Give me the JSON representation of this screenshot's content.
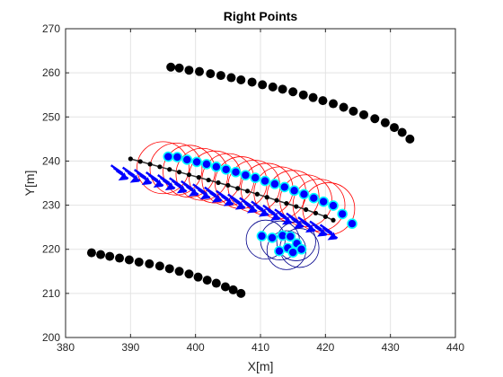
{
  "chart_data": {
    "type": "scatter",
    "title": "Right Points",
    "xlabel": "X[m]",
    "ylabel": "Y[m]",
    "xlim": [
      380,
      440
    ],
    "ylim": [
      200,
      270
    ],
    "xticks": [
      380,
      390,
      400,
      410,
      420,
      430,
      440
    ],
    "yticks": [
      200,
      210,
      220,
      230,
      240,
      250,
      260,
      270
    ],
    "grid": true,
    "colors": {
      "black_points": "#000000",
      "blue_markers": "#0000ff",
      "cyan_edge": "#00ffff",
      "red_circles": "#ff0000",
      "navy_circles": "#00008b",
      "dark_line": "#333333"
    },
    "series": [
      {
        "marker": "filled-circle",
        "color": "#000000",
        "points": [
          [
            396.2,
            261.3
          ],
          [
            397.5,
            261.1
          ],
          [
            399.0,
            260.6
          ],
          [
            400.6,
            260.3
          ],
          [
            402.3,
            259.8
          ],
          [
            403.9,
            259.4
          ],
          [
            405.5,
            258.9
          ],
          [
            407.0,
            258.4
          ],
          [
            408.7,
            257.9
          ],
          [
            410.3,
            257.3
          ],
          [
            411.9,
            256.8
          ],
          [
            413.4,
            256.3
          ],
          [
            415.0,
            255.7
          ],
          [
            416.6,
            255.0
          ],
          [
            418.1,
            254.4
          ],
          [
            419.6,
            253.7
          ],
          [
            421.2,
            253.0
          ],
          [
            422.8,
            252.2
          ],
          [
            424.3,
            251.3
          ],
          [
            425.9,
            250.5
          ],
          [
            427.6,
            249.6
          ],
          [
            429.2,
            248.7
          ],
          [
            430.6,
            247.6
          ],
          [
            431.8,
            246.5
          ],
          [
            433.0,
            245.0
          ]
        ]
      },
      {
        "marker": "filled-circle",
        "color": "#000000",
        "points": [
          [
            384.0,
            219.2
          ],
          [
            385.4,
            218.8
          ],
          [
            386.8,
            218.4
          ],
          [
            388.3,
            218.0
          ],
          [
            389.8,
            217.6
          ],
          [
            391.3,
            217.1
          ],
          [
            392.9,
            216.7
          ],
          [
            394.5,
            216.2
          ],
          [
            396.0,
            215.6
          ],
          [
            397.5,
            215.0
          ],
          [
            399.0,
            214.4
          ],
          [
            400.4,
            213.7
          ],
          [
            401.8,
            213.0
          ],
          [
            403.2,
            212.3
          ],
          [
            404.6,
            211.5
          ],
          [
            405.8,
            210.8
          ],
          [
            407.0,
            210.0
          ]
        ]
      },
      {
        "marker": "filled-circle-small",
        "color": "#000000",
        "points": [
          [
            390.0,
            240.5
          ],
          [
            391.5,
            239.9
          ],
          [
            393.0,
            239.3
          ],
          [
            394.5,
            238.7
          ],
          [
            396.0,
            238.1
          ],
          [
            397.5,
            237.5
          ],
          [
            399.0,
            236.9
          ],
          [
            400.5,
            236.3
          ],
          [
            402.0,
            235.7
          ],
          [
            403.5,
            235.1
          ],
          [
            405.0,
            234.5
          ],
          [
            406.5,
            233.8
          ],
          [
            408.0,
            233.2
          ],
          [
            409.5,
            232.5
          ],
          [
            411.0,
            231.8
          ],
          [
            412.5,
            231.1
          ],
          [
            414.0,
            230.4
          ],
          [
            415.5,
            229.7
          ],
          [
            417.0,
            229.0
          ],
          [
            418.5,
            228.2
          ],
          [
            420.0,
            227.4
          ],
          [
            421.2,
            226.6
          ]
        ]
      },
      {
        "marker": "cyan-edged-circle",
        "color": "#0000ff",
        "points": [
          [
            395.8,
            241.0
          ],
          [
            397.2,
            240.9
          ],
          [
            398.7,
            240.3
          ],
          [
            400.2,
            239.8
          ],
          [
            401.7,
            239.3
          ],
          [
            403.2,
            238.7
          ],
          [
            404.7,
            238.1
          ],
          [
            406.2,
            237.5
          ],
          [
            407.7,
            236.8
          ],
          [
            409.2,
            236.2
          ],
          [
            410.7,
            235.5
          ],
          [
            412.2,
            234.8
          ],
          [
            413.7,
            234.1
          ],
          [
            415.2,
            233.3
          ],
          [
            416.7,
            232.5
          ],
          [
            418.2,
            231.6
          ],
          [
            419.7,
            230.8
          ],
          [
            421.2,
            229.9
          ],
          [
            422.6,
            228.0
          ],
          [
            424.1,
            225.8
          ],
          [
            413.4,
            223.1
          ],
          [
            414.6,
            222.9
          ],
          [
            411.8,
            222.6
          ],
          [
            410.2,
            223.0
          ],
          [
            415.6,
            221.3
          ],
          [
            414.2,
            220.3
          ],
          [
            412.9,
            219.6
          ],
          [
            415.0,
            219.3
          ],
          [
            416.3,
            220.0
          ]
        ]
      },
      {
        "marker": "blue-arrow",
        "color": "#0000ff",
        "points": [
          [
            387.0,
            237.0
          ],
          [
            388.8,
            236.5
          ],
          [
            390.6,
            236.0
          ],
          [
            392.4,
            235.4
          ],
          [
            394.2,
            234.8
          ],
          [
            396.0,
            234.1
          ],
          [
            397.8,
            233.4
          ],
          [
            399.6,
            232.7
          ],
          [
            401.4,
            232.0
          ],
          [
            403.2,
            231.2
          ],
          [
            405.0,
            230.4
          ],
          [
            406.8,
            229.6
          ],
          [
            408.6,
            228.8
          ],
          [
            410.4,
            227.9
          ],
          [
            412.2,
            227.0
          ],
          [
            414.0,
            226.1
          ],
          [
            415.8,
            225.2
          ],
          [
            417.6,
            224.3
          ],
          [
            419.2,
            223.5
          ]
        ]
      },
      {
        "marker": "open-circle-r4",
        "color": "#ff0000",
        "points": [
          [
            395.0,
            238.5
          ],
          [
            397.0,
            238.2
          ],
          [
            399.0,
            237.7
          ],
          [
            401.0,
            237.0
          ],
          [
            403.0,
            236.4
          ],
          [
            405.0,
            235.8
          ],
          [
            407.0,
            235.1
          ],
          [
            409.0,
            234.3
          ],
          [
            411.0,
            233.6
          ],
          [
            413.0,
            232.8
          ],
          [
            415.0,
            232.0
          ],
          [
            417.0,
            231.0
          ],
          [
            419.0,
            230.0
          ],
          [
            420.5,
            229.2
          ]
        ]
      },
      {
        "marker": "open-circle-r3",
        "color": "#00008b",
        "points": [
          [
            410.8,
            222.2
          ],
          [
            413.0,
            222.0
          ],
          [
            415.5,
            221.8
          ],
          [
            414.0,
            219.8
          ],
          [
            416.0,
            220.3
          ]
        ]
      }
    ]
  }
}
